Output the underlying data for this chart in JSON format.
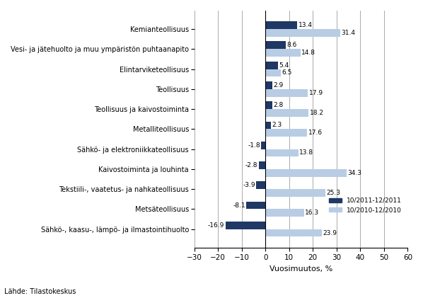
{
  "categories": [
    "Kemianteollisuus",
    "Vesi- ja jätehuolto ja muu ympäristön puhtaanapito",
    "Elintarviketeollisuus",
    "Teollisuus",
    "Teollisuus ja kaivostoiminta",
    "Metalliteollisuus",
    "Sähkö- ja elektroniikkateollisuus",
    "Kaivostoiminta ja louhinta",
    "Tekstiili-, vaatetus- ja nahkateollisuus",
    "Metsäteollisuus",
    "Sähkö-, kaasu-, lämpö- ja ilmastointihuolto"
  ],
  "values_2011": [
    13.4,
    8.6,
    5.4,
    2.9,
    2.8,
    2.3,
    -1.8,
    -2.8,
    -3.9,
    -8.1,
    -16.9
  ],
  "values_2010": [
    31.4,
    14.8,
    6.5,
    17.9,
    18.2,
    17.6,
    13.8,
    34.3,
    25.3,
    16.3,
    23.9
  ],
  "color_2011": "#1f3864",
  "color_2010": "#b8cce4",
  "xlabel": "Vuosimuutos, %",
  "legend_2011": "10/2011-12/2011",
  "legend_2010": "10/2010-12/2010",
  "source": "Lähde: Tilastokeskus",
  "xlim": [
    -30,
    60
  ],
  "xticks": [
    -30,
    -20,
    -10,
    0,
    10,
    20,
    30,
    40,
    50,
    60
  ],
  "bar_height": 0.38
}
